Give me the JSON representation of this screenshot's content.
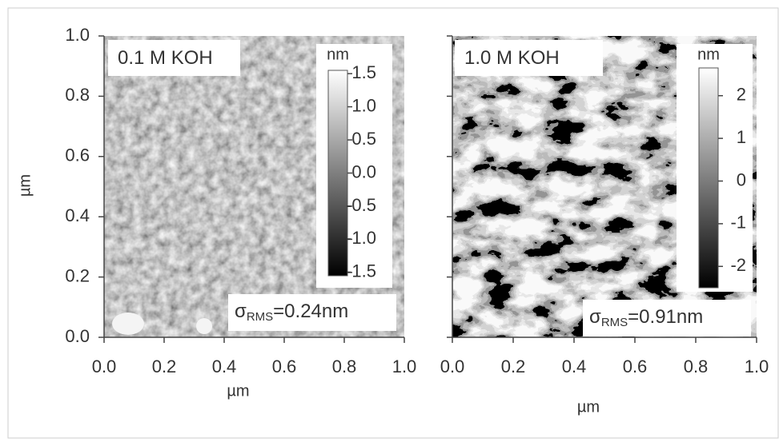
{
  "chart_data": [
    {
      "type": "image",
      "annotation": "0.1 M KOH",
      "rms_label": {
        "symbol": "σ",
        "subscript": "RMS",
        "value_text": "=0.24nm"
      },
      "xlabel": "µm",
      "ylabel": "µm",
      "xlim": [
        0,
        1
      ],
      "ylim": [
        0,
        1
      ],
      "xticks": [
        {
          "value": 0,
          "label": "0.0"
        },
        0.2,
        0.4,
        0.6,
        0.8,
        {
          "value": 1,
          "label": "1.0"
        }
      ],
      "yticks": [
        {
          "value": 0,
          "label": "0.0"
        },
        0.2,
        0.4,
        0.6,
        0.8,
        {
          "value": 1,
          "label": "1.0"
        }
      ],
      "colorbar": {
        "label": "nm",
        "lim": [
          -1.55,
          1.55
        ],
        "ticks": [
          1.5,
          {
            "value": 1,
            "label": "1.0"
          },
          0.5,
          {
            "value": 0,
            "label": "0.0"
          },
          -0.5,
          {
            "value": -1,
            "label": "-1.0"
          },
          -1.5
        ]
      }
    },
    {
      "type": "image",
      "annotation": "1.0 M KOH",
      "rms_label": {
        "symbol": "σ",
        "subscript": "RMS",
        "value_text": "=0.91nm"
      },
      "xlabel": "µm",
      "xlim": [
        0,
        1
      ],
      "ylim": [
        0,
        1
      ],
      "xticks": [
        {
          "value": 0,
          "label": "0.0"
        },
        0.2,
        0.4,
        0.6,
        0.8,
        {
          "value": 1,
          "label": "1.0"
        }
      ],
      "yticks": [
        0,
        0.2,
        0.4,
        0.6,
        0.8,
        1
      ],
      "colorbar": {
        "label": "nm",
        "lim": [
          -2.5,
          2.65
        ],
        "ticks": [
          2,
          1,
          0,
          -1,
          -2
        ]
      }
    }
  ]
}
